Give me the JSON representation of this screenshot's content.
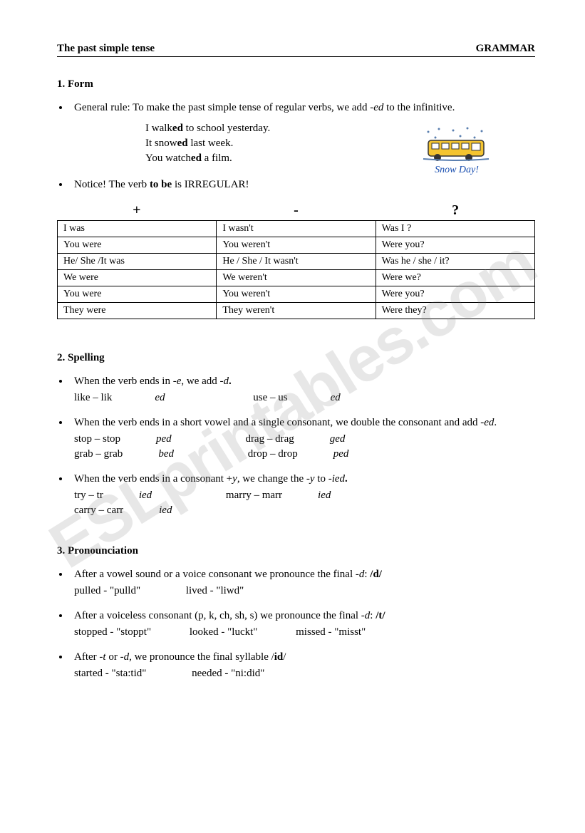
{
  "header": {
    "left": "The past simple tense",
    "right": "GRAMMAR"
  },
  "watermark": "ESLprintables.com",
  "section1": {
    "title": "1. Form",
    "rule_prefix": "General rule: To make the past simple tense of regular verbs, we add ",
    "rule_italic": "-ed",
    "rule_suffix": " to the infinitive.",
    "ex1_a": "I walk",
    "ex1_b": "ed",
    "ex1_c": " to school yesterday.",
    "ex2_a": "It snow",
    "ex2_b": "ed",
    "ex2_c": " last week.",
    "ex3_a": "You watch",
    "ex3_b": "ed",
    "ex3_c": "  a film.",
    "notice_a": "Notice! The verb ",
    "notice_b": "to be",
    "notice_c": " is IRREGULAR!",
    "snow_caption": "Snow Day!",
    "snow_colors": {
      "bus": "#f4c430",
      "outline": "#333333",
      "snow": "#5a7fb0"
    },
    "table_headers": {
      "plus": "+",
      "minus": "-",
      "question": "?"
    },
    "table": [
      [
        "I was",
        "I wasn't",
        "Was I ?"
      ],
      [
        "You were",
        "You weren't",
        "Were you?"
      ],
      [
        "He/ She /It was",
        "He / She / It wasn't",
        "Was he / she / it?"
      ],
      [
        "We were",
        "We weren't",
        "Were we?"
      ],
      [
        "You were",
        "You weren't",
        "Were you?"
      ],
      [
        "They were",
        "They weren't",
        "Were they?"
      ]
    ]
  },
  "section2": {
    "title": "2. Spelling",
    "b1_a": "When the verb ends in ",
    "b1_b": "-e",
    "b1_c": ", we add ",
    "b1_d": "-d",
    "b1_e": ".",
    "b1_ex1_a": "like – lik",
    "b1_ex1_b": "ed",
    "b1_ex2_a": "use – us",
    "b1_ex2_b": "ed",
    "b2_a": "When the verb ends in a short vowel and a single consonant, we double the consonant and add ",
    "b2_b": "-ed",
    "b2_c": ".",
    "b2_ex1_a": "stop – stop",
    "b2_ex1_b": "ped",
    "b2_ex2_a": "drag – drag",
    "b2_ex2_b": "ged",
    "b2_ex3_a": "grab – grab",
    "b2_ex3_b": "bed",
    "b2_ex4_a": "drop – drop",
    "b2_ex4_b": "ped",
    "b3_a": "When the verb ends in a consonant +",
    "b3_b": "y",
    "b3_c": ", we change the ",
    "b3_d": "-y",
    "b3_e": " to ",
    "b3_f": "-ied",
    "b3_g": ".",
    "b3_ex1_a": "try – tr",
    "b3_ex1_b": "ied",
    "b3_ex2_a": "marry – marr",
    "b3_ex2_b": "ied",
    "b3_ex3_a": "carry – carr",
    "b3_ex3_b": "ied"
  },
  "section3": {
    "title": "3. Pronounciation",
    "b1_a": "After a vowel sound or a voice consonant we pronounce the final ",
    "b1_b": "-d",
    "b1_c": ":   ",
    "b1_d": "/d/",
    "b1_ex1": "pulled - \"pulld\"",
    "b1_ex2": "lived - \"liwd\"",
    "b2_a": "After a voiceless consonant (p, k, ch, sh, s) we pronounce the final ",
    "b2_b": "-d",
    "b2_c": ":   ",
    "b2_d": "/t/",
    "b2_ex1": "stopped - \"stoppt\"",
    "b2_ex2": "looked - \"luckt\"",
    "b2_ex3": "missed - \"misst\"",
    "b3_a": "After ",
    "b3_b": "-t",
    "b3_c": " or ",
    "b3_d": "-d",
    "b3_e": ", we pronounce the final syllable /",
    "b3_f": "id",
    "b3_g": "/",
    "b3_ex1": "started  - \"sta:tid\"",
    "b3_ex2": "needed - \"ni:did\""
  }
}
